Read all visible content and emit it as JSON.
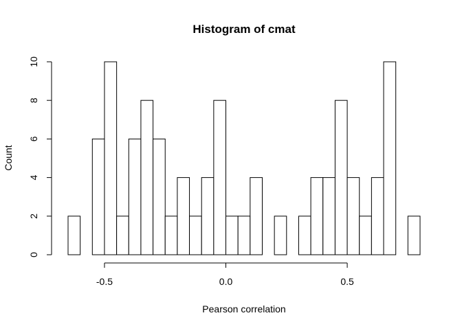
{
  "chart_data": {
    "type": "bar",
    "title": "Histogram of cmat",
    "xlabel": "Pearson correlation",
    "ylabel": "Count",
    "bin_width": 0.05,
    "bins": [
      {
        "x0": -0.65,
        "x1": -0.6,
        "count": 2
      },
      {
        "x0": -0.6,
        "x1": -0.55,
        "count": 0
      },
      {
        "x0": -0.55,
        "x1": -0.5,
        "count": 6
      },
      {
        "x0": -0.5,
        "x1": -0.45,
        "count": 10
      },
      {
        "x0": -0.45,
        "x1": -0.4,
        "count": 2
      },
      {
        "x0": -0.4,
        "x1": -0.35,
        "count": 6
      },
      {
        "x0": -0.35,
        "x1": -0.3,
        "count": 8
      },
      {
        "x0": -0.3,
        "x1": -0.25,
        "count": 6
      },
      {
        "x0": -0.25,
        "x1": -0.2,
        "count": 2
      },
      {
        "x0": -0.2,
        "x1": -0.15,
        "count": 4
      },
      {
        "x0": -0.15,
        "x1": -0.1,
        "count": 2
      },
      {
        "x0": -0.1,
        "x1": -0.05,
        "count": 4
      },
      {
        "x0": -0.05,
        "x1": 0.0,
        "count": 8
      },
      {
        "x0": 0.0,
        "x1": 0.05,
        "count": 2
      },
      {
        "x0": 0.05,
        "x1": 0.1,
        "count": 2
      },
      {
        "x0": 0.1,
        "x1": 0.15,
        "count": 4
      },
      {
        "x0": 0.15,
        "x1": 0.2,
        "count": 0
      },
      {
        "x0": 0.2,
        "x1": 0.25,
        "count": 2
      },
      {
        "x0": 0.25,
        "x1": 0.3,
        "count": 0
      },
      {
        "x0": 0.3,
        "x1": 0.35,
        "count": 2
      },
      {
        "x0": 0.35,
        "x1": 0.4,
        "count": 4
      },
      {
        "x0": 0.4,
        "x1": 0.45,
        "count": 4
      },
      {
        "x0": 0.45,
        "x1": 0.5,
        "count": 8
      },
      {
        "x0": 0.5,
        "x1": 0.55,
        "count": 4
      },
      {
        "x0": 0.55,
        "x1": 0.6,
        "count": 2
      },
      {
        "x0": 0.6,
        "x1": 0.65,
        "count": 4
      },
      {
        "x0": 0.65,
        "x1": 0.7,
        "count": 10
      },
      {
        "x0": 0.7,
        "x1": 0.75,
        "count": 0
      },
      {
        "x0": 0.75,
        "x1": 0.8,
        "count": 2
      }
    ],
    "xlim": [
      -0.65,
      0.8
    ],
    "ylim": [
      0,
      10
    ],
    "x_ticks": [
      -0.5,
      0.0,
      0.5
    ],
    "x_tick_labels": [
      "-0.5",
      "0.0",
      "0.5"
    ],
    "y_ticks": [
      0,
      2,
      4,
      6,
      8,
      10
    ],
    "y_tick_labels": [
      "0",
      "2",
      "4",
      "6",
      "8",
      "10"
    ],
    "grid": false,
    "colors": {
      "bar_fill": "#ffffff",
      "bar_stroke": "#000000",
      "axis": "#000000"
    }
  }
}
